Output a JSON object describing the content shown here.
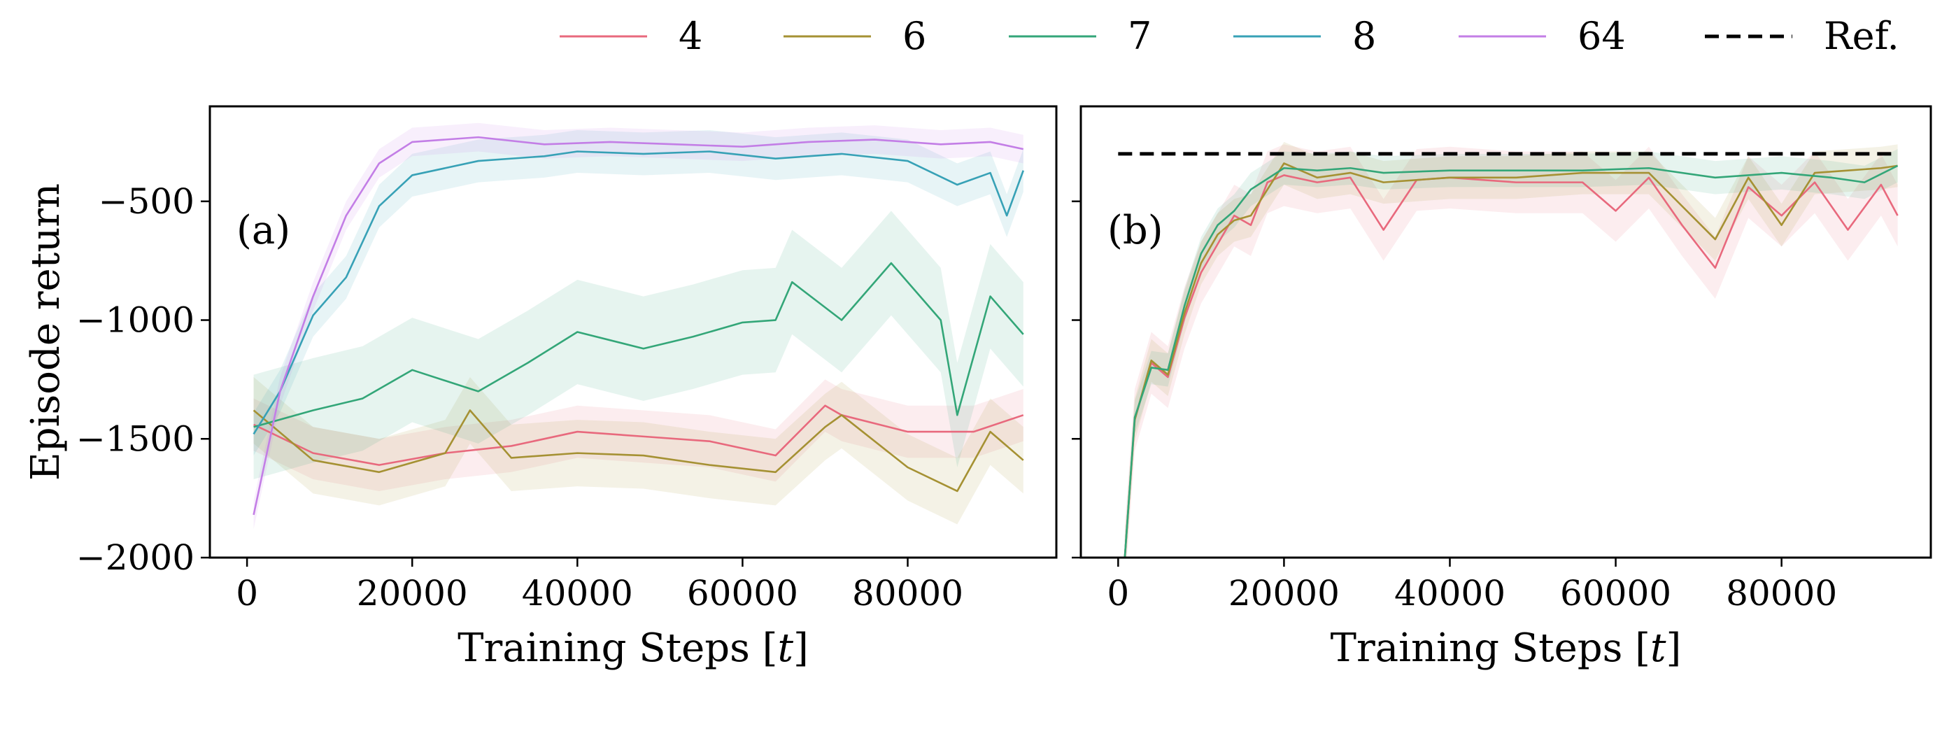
{
  "legend": {
    "items": [
      {
        "label": "4",
        "color": "#e8697d",
        "style": "solid"
      },
      {
        "label": "6",
        "color": "#a59133",
        "style": "solid"
      },
      {
        "label": "7",
        "color": "#33a678",
        "style": "solid"
      },
      {
        "label": "8",
        "color": "#37a1b6",
        "style": "solid"
      },
      {
        "label": "64",
        "color": "#c37ee6",
        "style": "solid"
      },
      {
        "label": "Ref.",
        "color": "#000000",
        "style": "dashed"
      }
    ]
  },
  "chart_data": [
    {
      "type": "line",
      "panel_label": "(a)",
      "xlabel": "Training Steps [t]",
      "ylabel": "Episode return",
      "xlim": [
        -4500,
        98000
      ],
      "ylim": [
        -2000,
        -100
      ],
      "x_ticks": [
        0,
        20000,
        40000,
        60000,
        80000
      ],
      "x_tick_labels": [
        "0",
        "20000",
        "40000",
        "60000",
        "80000"
      ],
      "y_ticks": [
        -2000,
        -1500,
        -1000,
        -500
      ],
      "y_tick_labels": [
        "−2000",
        "−1500",
        "−1000",
        "−500"
      ],
      "grid": false,
      "legend_position": "top (shared, outside)",
      "series": [
        {
          "name": "4",
          "color": "#e8697d",
          "points": [
            [
              800,
              -1440
            ],
            [
              8000,
              -1560
            ],
            [
              16000,
              -1610
            ],
            [
              24000,
              -1560
            ],
            [
              32000,
              -1530
            ],
            [
              40000,
              -1470
            ],
            [
              48000,
              -1490
            ],
            [
              56000,
              -1510
            ],
            [
              64000,
              -1570
            ],
            [
              70000,
              -1360
            ],
            [
              72000,
              -1400
            ],
            [
              80000,
              -1470
            ],
            [
              88000,
              -1470
            ],
            [
              94000,
              -1400
            ]
          ],
          "band": 110
        },
        {
          "name": "6",
          "color": "#a59133",
          "points": [
            [
              800,
              -1380
            ],
            [
              8000,
              -1590
            ],
            [
              16000,
              -1640
            ],
            [
              24000,
              -1560
            ],
            [
              27000,
              -1380
            ],
            [
              32000,
              -1580
            ],
            [
              40000,
              -1560
            ],
            [
              48000,
              -1570
            ],
            [
              56000,
              -1610
            ],
            [
              64000,
              -1640
            ],
            [
              70000,
              -1450
            ],
            [
              72000,
              -1400
            ],
            [
              80000,
              -1620
            ],
            [
              86000,
              -1720
            ],
            [
              90000,
              -1470
            ],
            [
              94000,
              -1590
            ]
          ],
          "band": 140
        },
        {
          "name": "7",
          "color": "#33a678",
          "points": [
            [
              800,
              -1450
            ],
            [
              8000,
              -1380
            ],
            [
              14000,
              -1330
            ],
            [
              20000,
              -1210
            ],
            [
              28000,
              -1300
            ],
            [
              34000,
              -1180
            ],
            [
              40000,
              -1050
            ],
            [
              48000,
              -1120
            ],
            [
              54000,
              -1070
            ],
            [
              60000,
              -1010
            ],
            [
              64000,
              -1000
            ],
            [
              66000,
              -840
            ],
            [
              72000,
              -1000
            ],
            [
              78000,
              -760
            ],
            [
              84000,
              -1000
            ],
            [
              86000,
              -1400
            ],
            [
              90000,
              -900
            ],
            [
              94000,
              -1060
            ]
          ],
          "band": 220
        },
        {
          "name": "8",
          "color": "#37a1b6",
          "points": [
            [
              800,
              -1480
            ],
            [
              4000,
              -1300
            ],
            [
              8000,
              -980
            ],
            [
              12000,
              -820
            ],
            [
              16000,
              -520
            ],
            [
              20000,
              -390
            ],
            [
              28000,
              -330
            ],
            [
              36000,
              -310
            ],
            [
              40000,
              -290
            ],
            [
              48000,
              -300
            ],
            [
              56000,
              -290
            ],
            [
              64000,
              -320
            ],
            [
              72000,
              -300
            ],
            [
              80000,
              -330
            ],
            [
              86000,
              -430
            ],
            [
              90000,
              -380
            ],
            [
              92000,
              -560
            ],
            [
              94000,
              -370
            ]
          ],
          "band": 90
        },
        {
          "name": "64",
          "color": "#c37ee6",
          "points": [
            [
              800,
              -1820
            ],
            [
              4000,
              -1300
            ],
            [
              8000,
              -900
            ],
            [
              12000,
              -560
            ],
            [
              16000,
              -340
            ],
            [
              20000,
              -250
            ],
            [
              28000,
              -230
            ],
            [
              36000,
              -260
            ],
            [
              44000,
              -250
            ],
            [
              52000,
              -260
            ],
            [
              60000,
              -270
            ],
            [
              68000,
              -250
            ],
            [
              76000,
              -240
            ],
            [
              84000,
              -260
            ],
            [
              90000,
              -250
            ],
            [
              94000,
              -280
            ]
          ],
          "band": 60
        }
      ]
    },
    {
      "type": "line",
      "panel_label": "(b)",
      "xlabel": "Training Steps [t]",
      "ylabel": "",
      "xlim": [
        -4500,
        98000
      ],
      "ylim": [
        -2000,
        -100
      ],
      "x_ticks": [
        0,
        20000,
        40000,
        60000,
        80000
      ],
      "x_tick_labels": [
        "0",
        "20000",
        "40000",
        "60000",
        "80000"
      ],
      "y_ticks": [
        -2000,
        -1500,
        -1000,
        -500
      ],
      "y_tick_labels": [],
      "grid": false,
      "series": [
        {
          "name": "4",
          "color": "#e8697d",
          "points": [
            [
              800,
              -2000
            ],
            [
              2000,
              -1420
            ],
            [
              4000,
              -1180
            ],
            [
              6000,
              -1240
            ],
            [
              8000,
              -990
            ],
            [
              10000,
              -800
            ],
            [
              12000,
              -680
            ],
            [
              14000,
              -560
            ],
            [
              16000,
              -600
            ],
            [
              18000,
              -420
            ],
            [
              20000,
              -390
            ],
            [
              24000,
              -420
            ],
            [
              28000,
              -400
            ],
            [
              32000,
              -620
            ],
            [
              36000,
              -410
            ],
            [
              40000,
              -400
            ],
            [
              48000,
              -420
            ],
            [
              56000,
              -420
            ],
            [
              60000,
              -540
            ],
            [
              64000,
              -400
            ],
            [
              68000,
              -600
            ],
            [
              72000,
              -780
            ],
            [
              76000,
              -440
            ],
            [
              80000,
              -560
            ],
            [
              84000,
              -420
            ],
            [
              88000,
              -620
            ],
            [
              92000,
              -430
            ],
            [
              94000,
              -560
            ]
          ],
          "band": 130
        },
        {
          "name": "6",
          "color": "#a59133",
          "points": [
            [
              800,
              -2000
            ],
            [
              2000,
              -1420
            ],
            [
              4000,
              -1170
            ],
            [
              6000,
              -1230
            ],
            [
              8000,
              -970
            ],
            [
              10000,
              -760
            ],
            [
              12000,
              -640
            ],
            [
              14000,
              -580
            ],
            [
              16000,
              -560
            ],
            [
              20000,
              -340
            ],
            [
              24000,
              -400
            ],
            [
              28000,
              -380
            ],
            [
              32000,
              -420
            ],
            [
              40000,
              -400
            ],
            [
              48000,
              -400
            ],
            [
              56000,
              -380
            ],
            [
              64000,
              -380
            ],
            [
              72000,
              -660
            ],
            [
              76000,
              -400
            ],
            [
              80000,
              -600
            ],
            [
              84000,
              -380
            ],
            [
              88000,
              -370
            ],
            [
              92000,
              -360
            ],
            [
              94000,
              -350
            ]
          ],
          "band": 90
        },
        {
          "name": "7",
          "color": "#33a678",
          "points": [
            [
              800,
              -2000
            ],
            [
              2000,
              -1410
            ],
            [
              4000,
              -1200
            ],
            [
              6000,
              -1210
            ],
            [
              8000,
              -940
            ],
            [
              10000,
              -720
            ],
            [
              12000,
              -600
            ],
            [
              14000,
              -540
            ],
            [
              16000,
              -450
            ],
            [
              20000,
              -360
            ],
            [
              24000,
              -370
            ],
            [
              28000,
              -360
            ],
            [
              32000,
              -380
            ],
            [
              40000,
              -370
            ],
            [
              48000,
              -370
            ],
            [
              56000,
              -370
            ],
            [
              64000,
              -360
            ],
            [
              72000,
              -400
            ],
            [
              80000,
              -380
            ],
            [
              86000,
              -400
            ],
            [
              90000,
              -420
            ],
            [
              94000,
              -350
            ]
          ],
          "band": 70
        },
        {
          "name": "Ref.",
          "color": "#000000",
          "dashed": true,
          "points": [
            [
              0,
              -300
            ],
            [
              94000,
              -300
            ]
          ]
        }
      ]
    }
  ]
}
